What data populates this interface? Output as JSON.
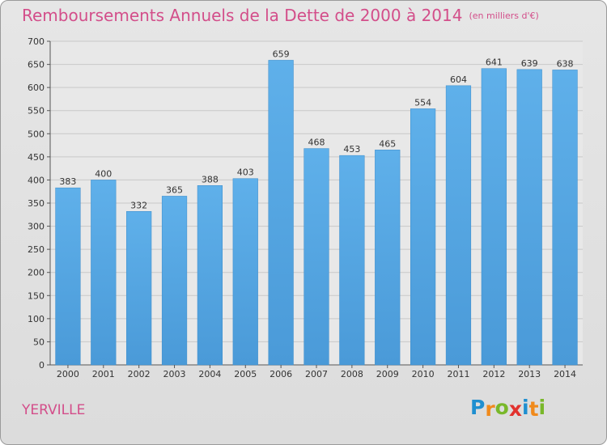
{
  "chart_data": {
    "type": "bar",
    "title": "Remboursements Annuels de la Dette de 2000 à 2014",
    "subtitle": "(en milliers d'€)",
    "categories": [
      "2000",
      "2001",
      "2002",
      "2003",
      "2004",
      "2005",
      "2006",
      "2007",
      "2008",
      "2009",
      "2010",
      "2011",
      "2012",
      "2013",
      "2014"
    ],
    "values": [
      383,
      400,
      332,
      365,
      388,
      403,
      659,
      468,
      453,
      465,
      554,
      604,
      641,
      639,
      638
    ],
    "ylim": [
      0,
      700
    ],
    "yticks": [
      0,
      50,
      100,
      150,
      200,
      250,
      300,
      350,
      400,
      450,
      500,
      550,
      600,
      650,
      700
    ],
    "xlabel": "",
    "ylabel": "",
    "grid": true,
    "bar_color": "#4a9ad8"
  },
  "footer": {
    "commune": "YERVILLE",
    "logo_letters": [
      "P",
      "r",
      "o",
      "x",
      "i",
      "t",
      "i"
    ],
    "logo_colors": [
      "#1f8fd0",
      "#f08a1c",
      "#79b82a",
      "#e2322e",
      "#1f8fd0",
      "#f08a1c",
      "#79b82a"
    ]
  }
}
